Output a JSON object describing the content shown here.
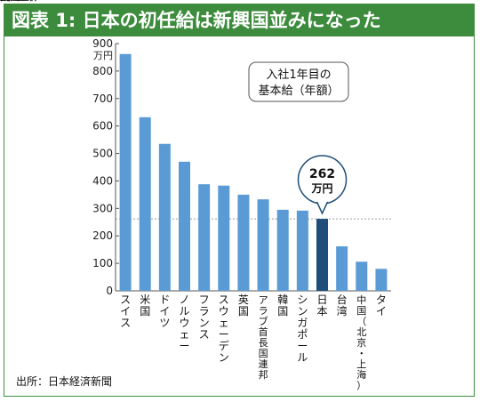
{
  "title": "図表 1: 日本の初任給は新興国並みになった",
  "source": "出所：日本経済新聞",
  "colors": {
    "header": "#3d8c3d",
    "bar": "#5b9bd5",
    "highlight": "#1f4e79",
    "axis": "#333333"
  },
  "chart_data": {
    "type": "bar",
    "title": "",
    "legend_box": "入社1年目の\n基本給（年額）",
    "ylabel": "万円",
    "ylim": [
      0,
      900
    ],
    "yticks": [
      0,
      100,
      200,
      300,
      400,
      500,
      600,
      700,
      800,
      900
    ],
    "reference_line": 262,
    "callout": {
      "value": "262",
      "unit": "万円"
    },
    "categories": [
      "スイス",
      "米国",
      "ドイツ",
      "ノルウェー",
      "フランス",
      "スウェーデン",
      "英国",
      "アラブ首長国連邦",
      "韓国",
      "シンガポール",
      "日本",
      "台湾",
      "中国（北京・上海）",
      "タイ"
    ],
    "values": [
      862,
      632,
      535,
      470,
      388,
      383,
      350,
      333,
      295,
      292,
      262,
      162,
      106,
      80
    ],
    "highlight_index": 10
  }
}
